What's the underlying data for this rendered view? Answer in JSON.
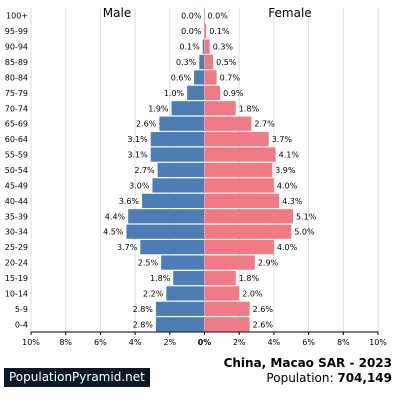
{
  "chart_data": {
    "type": "bar",
    "orientation": "horizontal-pyramid",
    "categories": [
      "100+",
      "95-99",
      "90-94",
      "85-89",
      "80-84",
      "75-79",
      "70-74",
      "65-69",
      "60-64",
      "55-59",
      "50-54",
      "45-49",
      "40-44",
      "35-39",
      "30-34",
      "25-29",
      "20-24",
      "15-19",
      "10-14",
      "5-9",
      "0-4"
    ],
    "series": [
      {
        "name": "Male",
        "values": [
          0.0,
          0.0,
          0.1,
          0.3,
          0.6,
          1.0,
          1.9,
          2.6,
          3.1,
          3.1,
          2.7,
          3.0,
          3.6,
          4.4,
          4.5,
          3.7,
          2.5,
          1.8,
          2.2,
          2.8,
          2.8
        ]
      },
      {
        "name": "Female",
        "values": [
          0.0,
          0.1,
          0.3,
          0.5,
          0.7,
          0.9,
          1.8,
          2.7,
          3.7,
          4.1,
          3.9,
          4.0,
          4.3,
          5.1,
          5.0,
          4.0,
          2.9,
          1.8,
          2.0,
          2.6,
          2.6
        ]
      }
    ],
    "value_labels": {
      "male": [
        "0.0%",
        "0.0%",
        "0.1%",
        "0.3%",
        "0.6%",
        "1.0%",
        "1.9%",
        "2.6%",
        "3.1%",
        "3.1%",
        "2.7%",
        "3.0%",
        "3.6%",
        "4.4%",
        "4.5%",
        "3.7%",
        "2.5%",
        "1.8%",
        "2.2%",
        "2.8%",
        "2.8%"
      ],
      "female": [
        "0.0%",
        "0.1%",
        "0.3%",
        "0.5%",
        "0.7%",
        "0.9%",
        "1.8%",
        "2.7%",
        "3.7%",
        "4.1%",
        "3.9%",
        "4.0%",
        "4.3%",
        "5.1%",
        "5.0%",
        "4.0%",
        "2.9%",
        "1.8%",
        "2.0%",
        "2.6%",
        "2.6%"
      ]
    },
    "xlim": [
      -10,
      10
    ],
    "x_ticks": [
      -10,
      -8,
      -6,
      -4,
      -2,
      0,
      2,
      4,
      6,
      8,
      10
    ],
    "x_tick_labels": [
      "10%",
      "8%",
      "6%",
      "4%",
      "2%",
      "0%",
      "2%",
      "4%",
      "6%",
      "8%",
      "10%"
    ],
    "grid": true,
    "colors": {
      "male": "#4c7db5",
      "female": "#f07b87",
      "grid": "#dddddd"
    }
  },
  "footer": {
    "brand": "PopulationPyramid.net",
    "country_year": "China, Macao SAR - 2023",
    "population_label": "Population:",
    "population_value": "704,149"
  }
}
